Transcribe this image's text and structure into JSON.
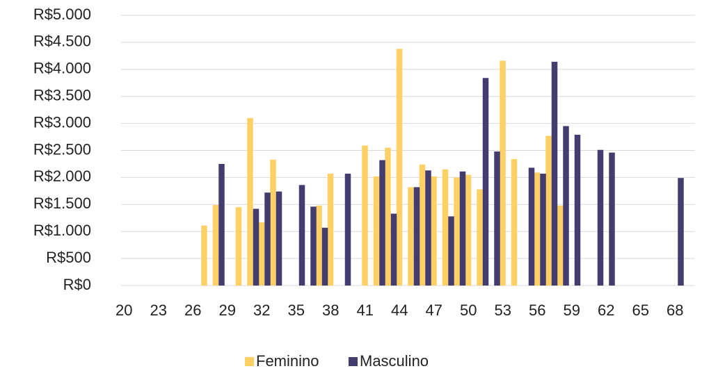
{
  "chart_data": {
    "type": "bar",
    "categories": [
      "20",
      null,
      null,
      "23",
      null,
      null,
      "26",
      null,
      null,
      "29",
      null,
      null,
      "32",
      null,
      null,
      "35",
      null,
      null,
      "38",
      null,
      null,
      "41",
      null,
      null,
      "44",
      null,
      null,
      "47",
      null,
      null,
      "50",
      null,
      null,
      "53",
      null,
      null,
      "56",
      null,
      null,
      "59",
      null,
      null,
      "62",
      null,
      null,
      "65",
      null,
      null,
      "68",
      null
    ],
    "series": [
      {
        "name": "Feminino",
        "color": "#ffd066",
        "values": [
          null,
          null,
          null,
          null,
          null,
          null,
          null,
          1110,
          1490,
          null,
          1450,
          3100,
          1170,
          2330,
          null,
          null,
          null,
          1480,
          2070,
          null,
          null,
          2590,
          2020,
          2550,
          4380,
          1820,
          2240,
          2020,
          2150,
          2000,
          2050,
          1780,
          null,
          4160,
          2340,
          null,
          2090,
          2770,
          1480,
          null,
          null,
          null,
          null,
          null,
          null,
          null,
          null,
          null,
          null,
          null
        ]
      },
      {
        "name": "Masculino",
        "color": "#433d6f",
        "values": [
          null,
          null,
          null,
          null,
          null,
          null,
          null,
          null,
          2250,
          null,
          null,
          1420,
          1720,
          1740,
          null,
          1860,
          1460,
          1070,
          null,
          2070,
          null,
          null,
          2320,
          1330,
          null,
          1820,
          2130,
          null,
          1280,
          2110,
          null,
          3840,
          2480,
          null,
          null,
          2180,
          2070,
          4140,
          2950,
          2790,
          null,
          2510,
          2460,
          null,
          null,
          null,
          null,
          null,
          1990,
          null
        ]
      }
    ],
    "ylim": [
      0,
      5000
    ],
    "yticks": [
      {
        "value": 0,
        "label": "R$0"
      },
      {
        "value": 500,
        "label": "R$500"
      },
      {
        "value": 1000,
        "label": "R$1.000"
      },
      {
        "value": 1500,
        "label": "R$1.500"
      },
      {
        "value": 2000,
        "label": "R$2.000"
      },
      {
        "value": 2500,
        "label": "R$2.500"
      },
      {
        "value": 3000,
        "label": "R$3.000"
      },
      {
        "value": 3500,
        "label": "R$3.500"
      },
      {
        "value": 4000,
        "label": "R$4.000"
      },
      {
        "value": 4500,
        "label": "R$4.500"
      },
      {
        "value": 5000,
        "label": "R$5.000"
      }
    ],
    "grid": true,
    "legend": "bottom"
  }
}
